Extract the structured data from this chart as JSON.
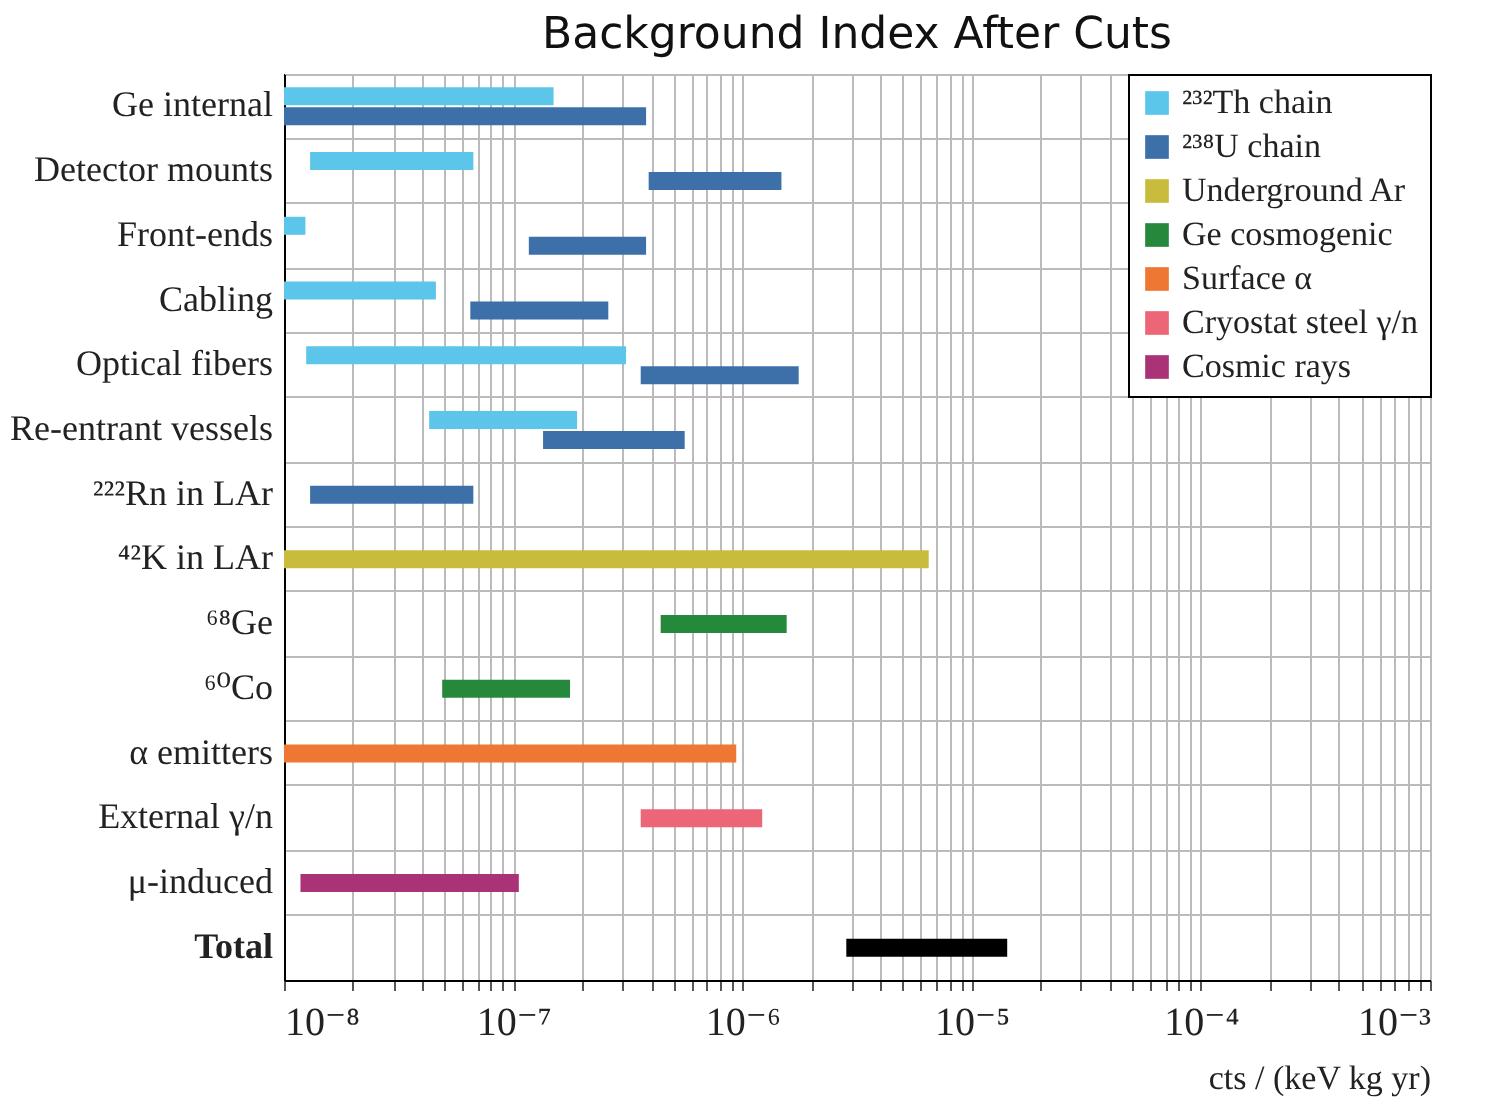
{
  "chart_data": {
    "type": "bar",
    "orientation": "horizontal",
    "title": "Background Index After Cuts",
    "xlabel": "cts / (keV kg yr)",
    "log": "x",
    "grid": true,
    "legend": "top right",
    "categories": [
      "Ge internal",
      "Detector mounts",
      "Front-ends",
      "Cabling",
      "Optical fibers",
      "Re-entrant vessels",
      "²²²Rn in LAr",
      "⁴²K in LAr",
      "⁶⁸Ge",
      "⁶⁰Co",
      "α emitters",
      "External γ/n",
      "μ-induced",
      "Total"
    ],
    "xlim": [
      1e-08,
      0.001
    ],
    "xticks": [
      {
        "value": 1e-08,
        "label": "10⁻⁸"
      },
      {
        "value": 2e-08,
        "label": null
      },
      {
        "value": 3e-08,
        "label": null
      },
      {
        "value": 4e-08,
        "label": null
      },
      {
        "value": 5e-08,
        "label": null
      },
      {
        "value": 6e-08,
        "label": null
      },
      {
        "value": 7e-08,
        "label": null
      },
      {
        "value": 8e-08,
        "label": null
      },
      {
        "value": 9e-08,
        "label": null
      },
      {
        "value": 1e-07,
        "label": "10⁻⁷"
      },
      {
        "value": 2e-07,
        "label": null
      },
      {
        "value": 3e-07,
        "label": null
      },
      {
        "value": 4e-07,
        "label": null
      },
      {
        "value": 5e-07,
        "label": null
      },
      {
        "value": 6e-07,
        "label": null
      },
      {
        "value": 7e-07,
        "label": null
      },
      {
        "value": 8e-07,
        "label": null
      },
      {
        "value": 9e-07,
        "label": null
      },
      {
        "value": 1e-06,
        "label": "10⁻⁶"
      },
      {
        "value": 2e-06,
        "label": null
      },
      {
        "value": 3e-06,
        "label": null
      },
      {
        "value": 4e-06,
        "label": null
      },
      {
        "value": 5e-06,
        "label": null
      },
      {
        "value": 6e-06,
        "label": null
      },
      {
        "value": 7e-06,
        "label": null
      },
      {
        "value": 8e-06,
        "label": null
      },
      {
        "value": 9e-06,
        "label": null
      },
      {
        "value": 1e-05,
        "label": "10⁻⁵"
      },
      {
        "value": 2e-05,
        "label": null
      },
      {
        "value": 3e-05,
        "label": null
      },
      {
        "value": 4e-05,
        "label": null
      },
      {
        "value": 5e-05,
        "label": null
      },
      {
        "value": 6e-05,
        "label": null
      },
      {
        "value": 7e-05,
        "label": null
      },
      {
        "value": 8e-05,
        "label": null
      },
      {
        "value": 9e-05,
        "label": null
      },
      {
        "value": 0.0001,
        "label": "10⁻⁴"
      },
      {
        "value": 0.0002,
        "label": null
      },
      {
        "value": 0.0003,
        "label": null
      },
      {
        "value": 0.0004,
        "label": null
      },
      {
        "value": 0.0005,
        "label": null
      },
      {
        "value": 0.0006,
        "label": null
      },
      {
        "value": 0.0007,
        "label": null
      },
      {
        "value": 0.0008,
        "label": null
      },
      {
        "value": 0.0009,
        "label": null
      },
      {
        "value": 0.001,
        "label": "10⁻³"
      }
    ],
    "series": [
      {
        "name": "²³²Th chain",
        "color": "#5bc5ea",
        "base": [
          1e-08,
          1.3e-08,
          1e-08,
          1e-08,
          1.25e-08,
          4.3e-08,
          null,
          null,
          null,
          null,
          null,
          null,
          null,
          null
        ],
        "values": [
          1.4e-07,
          5.4e-08,
          2.4e-09,
          3.6e-08,
          2.98e-07,
          1.47e-07,
          null,
          null,
          null,
          null,
          null,
          null,
          null,
          null
        ]
      },
      {
        "name": "²³⁸U chain",
        "color": "#3d6fa8",
        "base": [
          1e-08,
          3.9e-07,
          1.17e-07,
          6.5e-08,
          3.6e-07,
          1.35e-07,
          1.3e-08,
          null,
          null,
          null,
          null,
          null,
          null,
          null
        ],
        "values": [
          3.7e-07,
          1.09e-06,
          2.63e-07,
          1.95e-07,
          1.4e-06,
          4.25e-07,
          5.4e-08,
          null,
          null,
          null,
          null,
          null,
          null,
          null
        ]
      },
      {
        "name": "Underground Ar",
        "color": "#c9bb3c",
        "base": [
          null,
          null,
          null,
          null,
          null,
          null,
          null,
          1e-08,
          null,
          null,
          null,
          null,
          null,
          null
        ],
        "values": [
          null,
          null,
          null,
          null,
          null,
          null,
          null,
          6.49e-06,
          null,
          null,
          null,
          null,
          null,
          null
        ]
      },
      {
        "name": "Ge cosmogenic",
        "color": "#25883a",
        "base": [
          null,
          null,
          null,
          null,
          null,
          null,
          null,
          null,
          4.4e-07,
          4.9e-08,
          null,
          null,
          null,
          null
        ],
        "values": [
          null,
          null,
          null,
          null,
          null,
          null,
          null,
          null,
          1.12e-06,
          1.28e-07,
          null,
          null,
          null,
          null
        ]
      },
      {
        "name": "Surface α",
        "color": "#ee7733",
        "base": [
          null,
          null,
          null,
          null,
          null,
          null,
          null,
          null,
          null,
          null,
          1e-08,
          null,
          null,
          null
        ],
        "values": [
          null,
          null,
          null,
          null,
          null,
          null,
          null,
          null,
          null,
          null,
          9.3e-07,
          null,
          null,
          null
        ]
      },
      {
        "name": "Cryostat steel γ/n",
        "color": "#ec6677",
        "base": [
          null,
          null,
          null,
          null,
          null,
          null,
          null,
          null,
          null,
          null,
          null,
          3.6e-07,
          null,
          null
        ],
        "values": [
          null,
          null,
          null,
          null,
          null,
          null,
          null,
          null,
          null,
          null,
          null,
          8.6e-07,
          null,
          null
        ]
      },
      {
        "name": "Cosmic rays",
        "color": "#aa3377",
        "base": [
          null,
          null,
          null,
          null,
          null,
          null,
          null,
          null,
          null,
          null,
          null,
          null,
          1.18e-08,
          null
        ],
        "values": [
          null,
          null,
          null,
          null,
          null,
          null,
          null,
          null,
          null,
          null,
          null,
          null,
          9.4e-08,
          null
        ]
      },
      {
        "color": "#000000",
        "base": [
          null,
          null,
          null,
          null,
          null,
          null,
          null,
          null,
          null,
          null,
          null,
          null,
          null,
          2.84e-06
        ],
        "values": [
          null,
          null,
          null,
          null,
          null,
          null,
          null,
          null,
          null,
          null,
          null,
          null,
          null,
          1.146e-05
        ]
      }
    ]
  }
}
